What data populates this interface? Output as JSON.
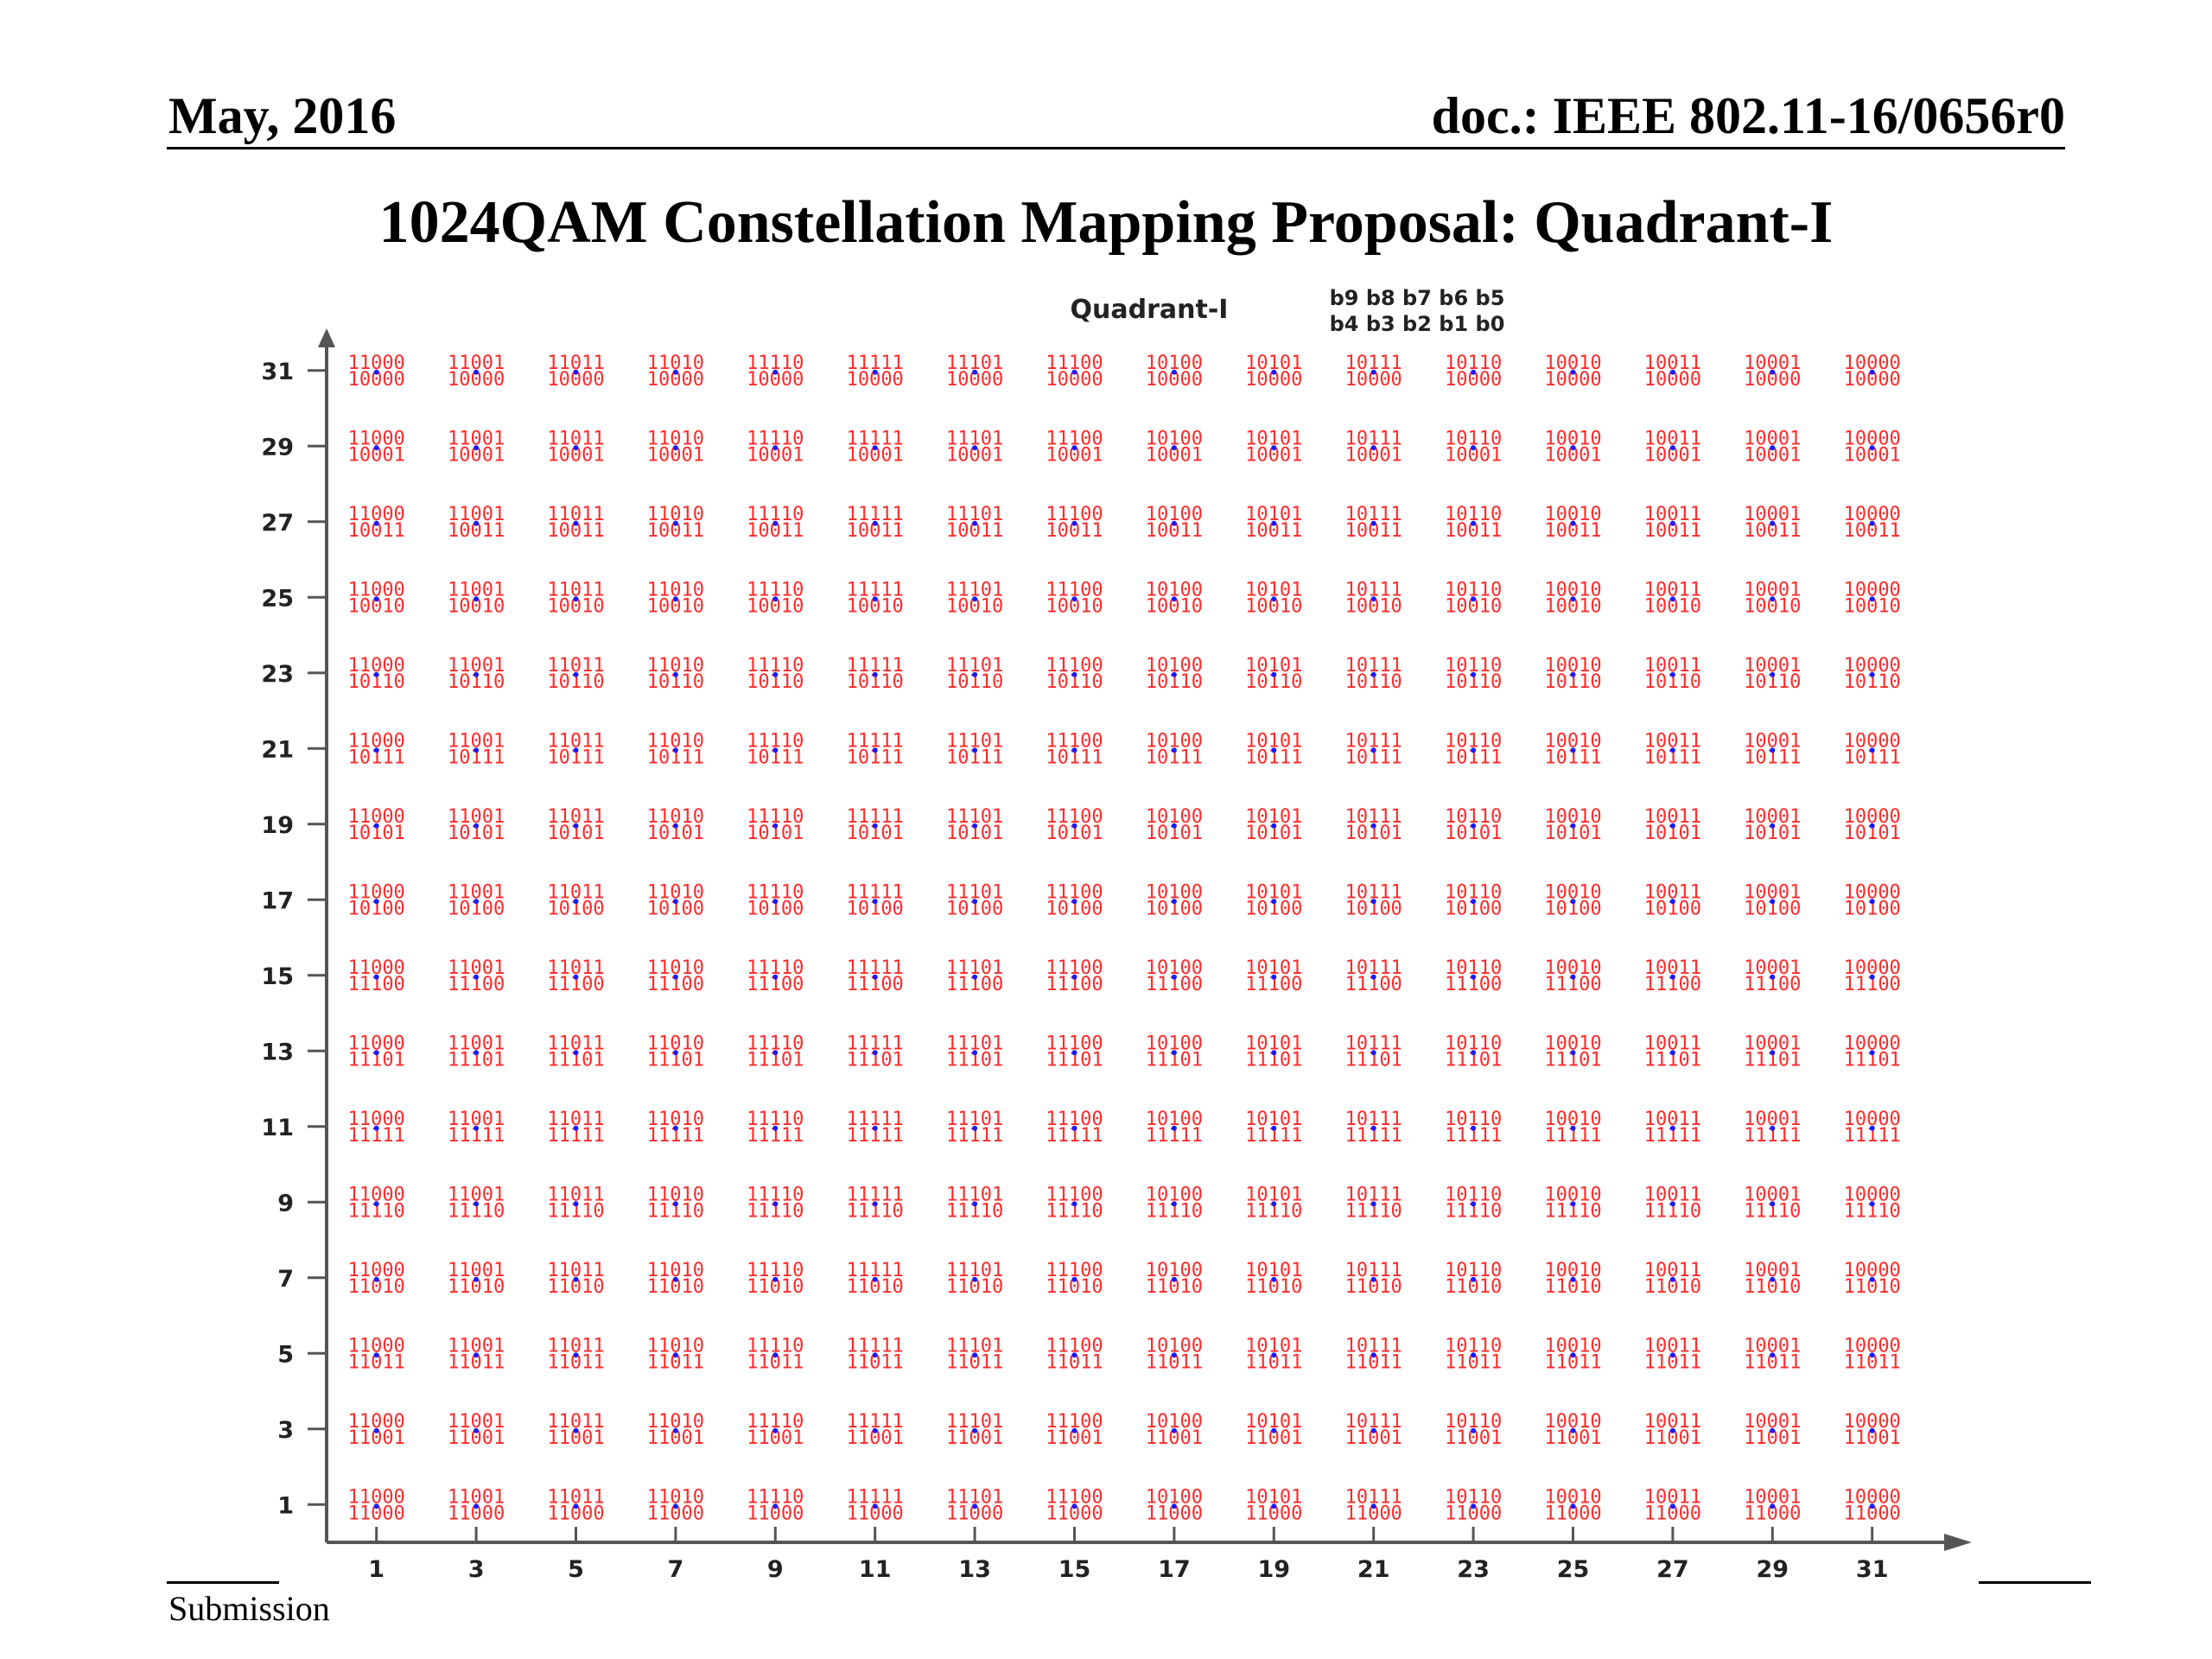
{
  "header": {
    "left": "May, 2016",
    "right": "doc.: IEEE 802.11-16/0656r0"
  },
  "title": "1024QAM Constellation Mapping Proposal:  Quadrant-I",
  "diagram": {
    "quadrant_label": "Quadrant-I",
    "bit_order_line1": "b9 b8 b7 b6 b5",
    "bit_order_line2": "b4 b3 b2 b1 b0",
    "x_ticks": [
      1,
      3,
      5,
      7,
      9,
      11,
      13,
      15,
      17,
      19,
      21,
      23,
      25,
      27,
      29,
      31
    ],
    "y_ticks": [
      1,
      3,
      5,
      7,
      9,
      11,
      13,
      15,
      17,
      19,
      21,
      23,
      25,
      27,
      29,
      31
    ],
    "column_codes": [
      "11000",
      "11001",
      "11011",
      "11010",
      "11110",
      "11111",
      "11101",
      "11100",
      "10100",
      "10101",
      "10111",
      "10110",
      "10010",
      "10011",
      "10001",
      "10000"
    ],
    "row_codes": [
      "11000",
      "11001",
      "11011",
      "11010",
      "11110",
      "11111",
      "11101",
      "11100",
      "10100",
      "10101",
      "10111",
      "10110",
      "10010",
      "10011",
      "10001",
      "10000"
    ],
    "point_label_color": "#ff2a2a",
    "point_color": "#1a1aff",
    "axis_color": "#555555"
  },
  "footer": {
    "left": "Submission"
  }
}
